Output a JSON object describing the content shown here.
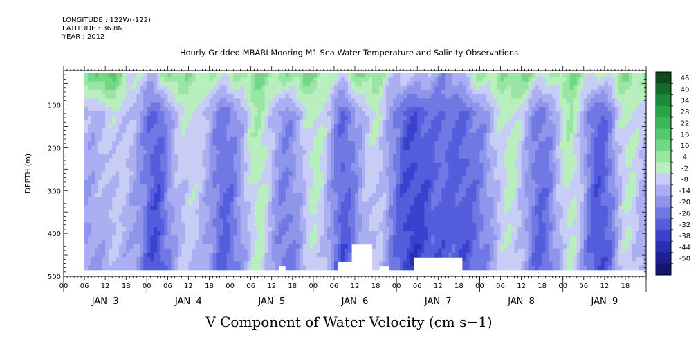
{
  "header": {
    "longitude": "LONGITUDE : 122W(-122)",
    "latitude": "LATITUDE : 36.8N",
    "year": "YEAR : 2012"
  },
  "chart_data": {
    "type": "heatmap",
    "title": "Hourly Gridded MBARI Mooring M1 Sea Water Temperature and Salinity Observations",
    "bottom_title": "V Component of Water Velocity (cm s−1)",
    "ylabel": "DEPTH (m)",
    "xlabel": "",
    "ylim": [
      500,
      20
    ],
    "y_reversed": true,
    "y_ticks": [
      {
        "value": 100,
        "label": "100"
      },
      {
        "value": 200,
        "label": "200"
      },
      {
        "value": 300,
        "label": "300"
      },
      {
        "value": 400,
        "label": "400"
      },
      {
        "value": 500,
        "label": "500"
      }
    ],
    "x_start": "2012-01-03T00:00",
    "x_end": "2012-01-09T23:00",
    "x_hour_ticks": [
      "00",
      "06",
      "12",
      "18",
      "00",
      "06",
      "12",
      "18",
      "00",
      "06",
      "12",
      "18",
      "00",
      "06",
      "12",
      "18",
      "00",
      "06",
      "12",
      "18",
      "00",
      "06",
      "12",
      "18",
      "00",
      "06",
      "12",
      "18"
    ],
    "x_day_labels": [
      "JAN  3",
      "JAN  4",
      "JAN  5",
      "JAN  6",
      "JAN  7",
      "JAN  8",
      "JAN  9"
    ],
    "data_depth_range": [
      25,
      485
    ],
    "data_time_start": "2012-01-03T06:00",
    "colorbar": {
      "labels": [
        "46",
        "40",
        "34",
        "28",
        "22",
        "16",
        "10",
        "4",
        "-2",
        "-8",
        "-14",
        "-20",
        "-26",
        "-32",
        "-38",
        "-44",
        "-50"
      ],
      "colors": [
        "#0d4a1f",
        "#136b2c",
        "#1b8a3a",
        "#27a549",
        "#3ab85a",
        "#53c96e",
        "#72d787",
        "#99e5a4",
        "#b9eebf",
        "#c8cdf6",
        "#a9aff0",
        "#8e95ea",
        "#7079e3",
        "#545ddc",
        "#3a41cf",
        "#2a2eb5",
        "#1d1f92",
        "#121470"
      ]
    },
    "grid": false,
    "legend": "colorbar-right",
    "pattern_note": "Alternating bands of positive (green) and negative (blue) velocity over time; surface layer mostly positive."
  }
}
